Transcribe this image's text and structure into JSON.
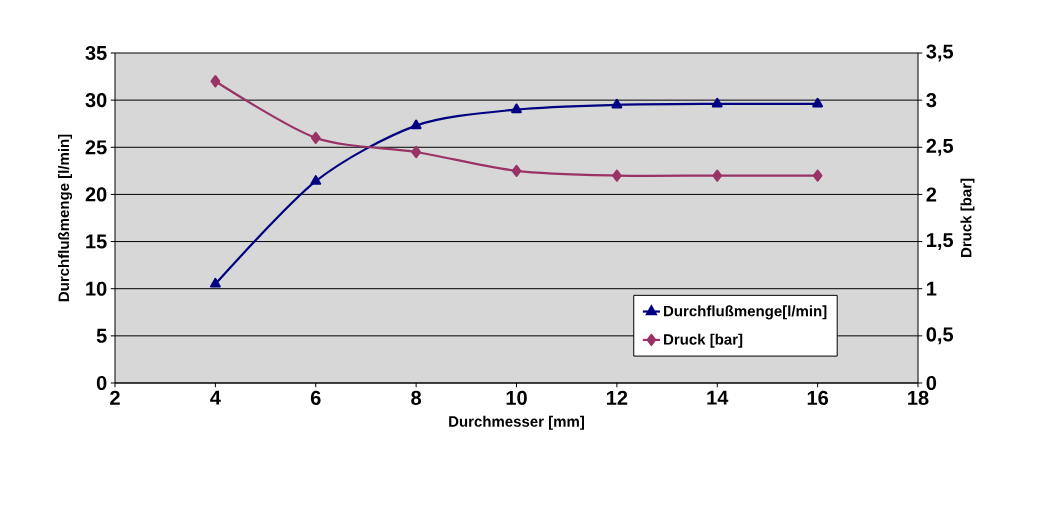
{
  "chart_data": {
    "type": "line",
    "xlabel": "Durchmesser [mm]",
    "ylabel": "Durchflußmenge [l/min]",
    "y2label": "Druck [bar]",
    "x": [
      4,
      6,
      8,
      10,
      12,
      14,
      16
    ],
    "series": [
      {
        "name": "Durchflußmenge[l/min]",
        "color": "#000080",
        "marker": "triangle",
        "values": [
          10.5,
          21.4,
          27.3,
          29,
          29.5,
          29.6,
          29.6
        ]
      },
      {
        "name": "Druck [bar]",
        "color": "#993366",
        "marker": "diamond",
        "axis": "y2",
        "values": [
          3.2,
          2.6,
          2.45,
          2.25,
          2.2,
          2.2,
          2.2
        ]
      }
    ],
    "xlim": [
      2,
      18
    ],
    "xticks": [
      2,
      4,
      6,
      8,
      10,
      12,
      14,
      16,
      18
    ],
    "ylim": [
      0,
      35
    ],
    "yticks": [
      0,
      5,
      10,
      15,
      20,
      25,
      30,
      35
    ],
    "y2lim": [
      0,
      3.5
    ],
    "y2ticks": [
      {
        "value": 0,
        "label": "0"
      },
      {
        "value": 0.5,
        "label": "0,5"
      },
      {
        "value": 1,
        "label": "1"
      },
      {
        "value": 1.5,
        "label": "1,5"
      },
      {
        "value": 2,
        "label": "2"
      },
      {
        "value": 2.5,
        "label": "2,5"
      },
      {
        "value": 3,
        "label": "3"
      },
      {
        "value": 3.5,
        "label": "3,5"
      }
    ],
    "grid": "y",
    "legend": "bottom right",
    "line_style": "solid"
  }
}
